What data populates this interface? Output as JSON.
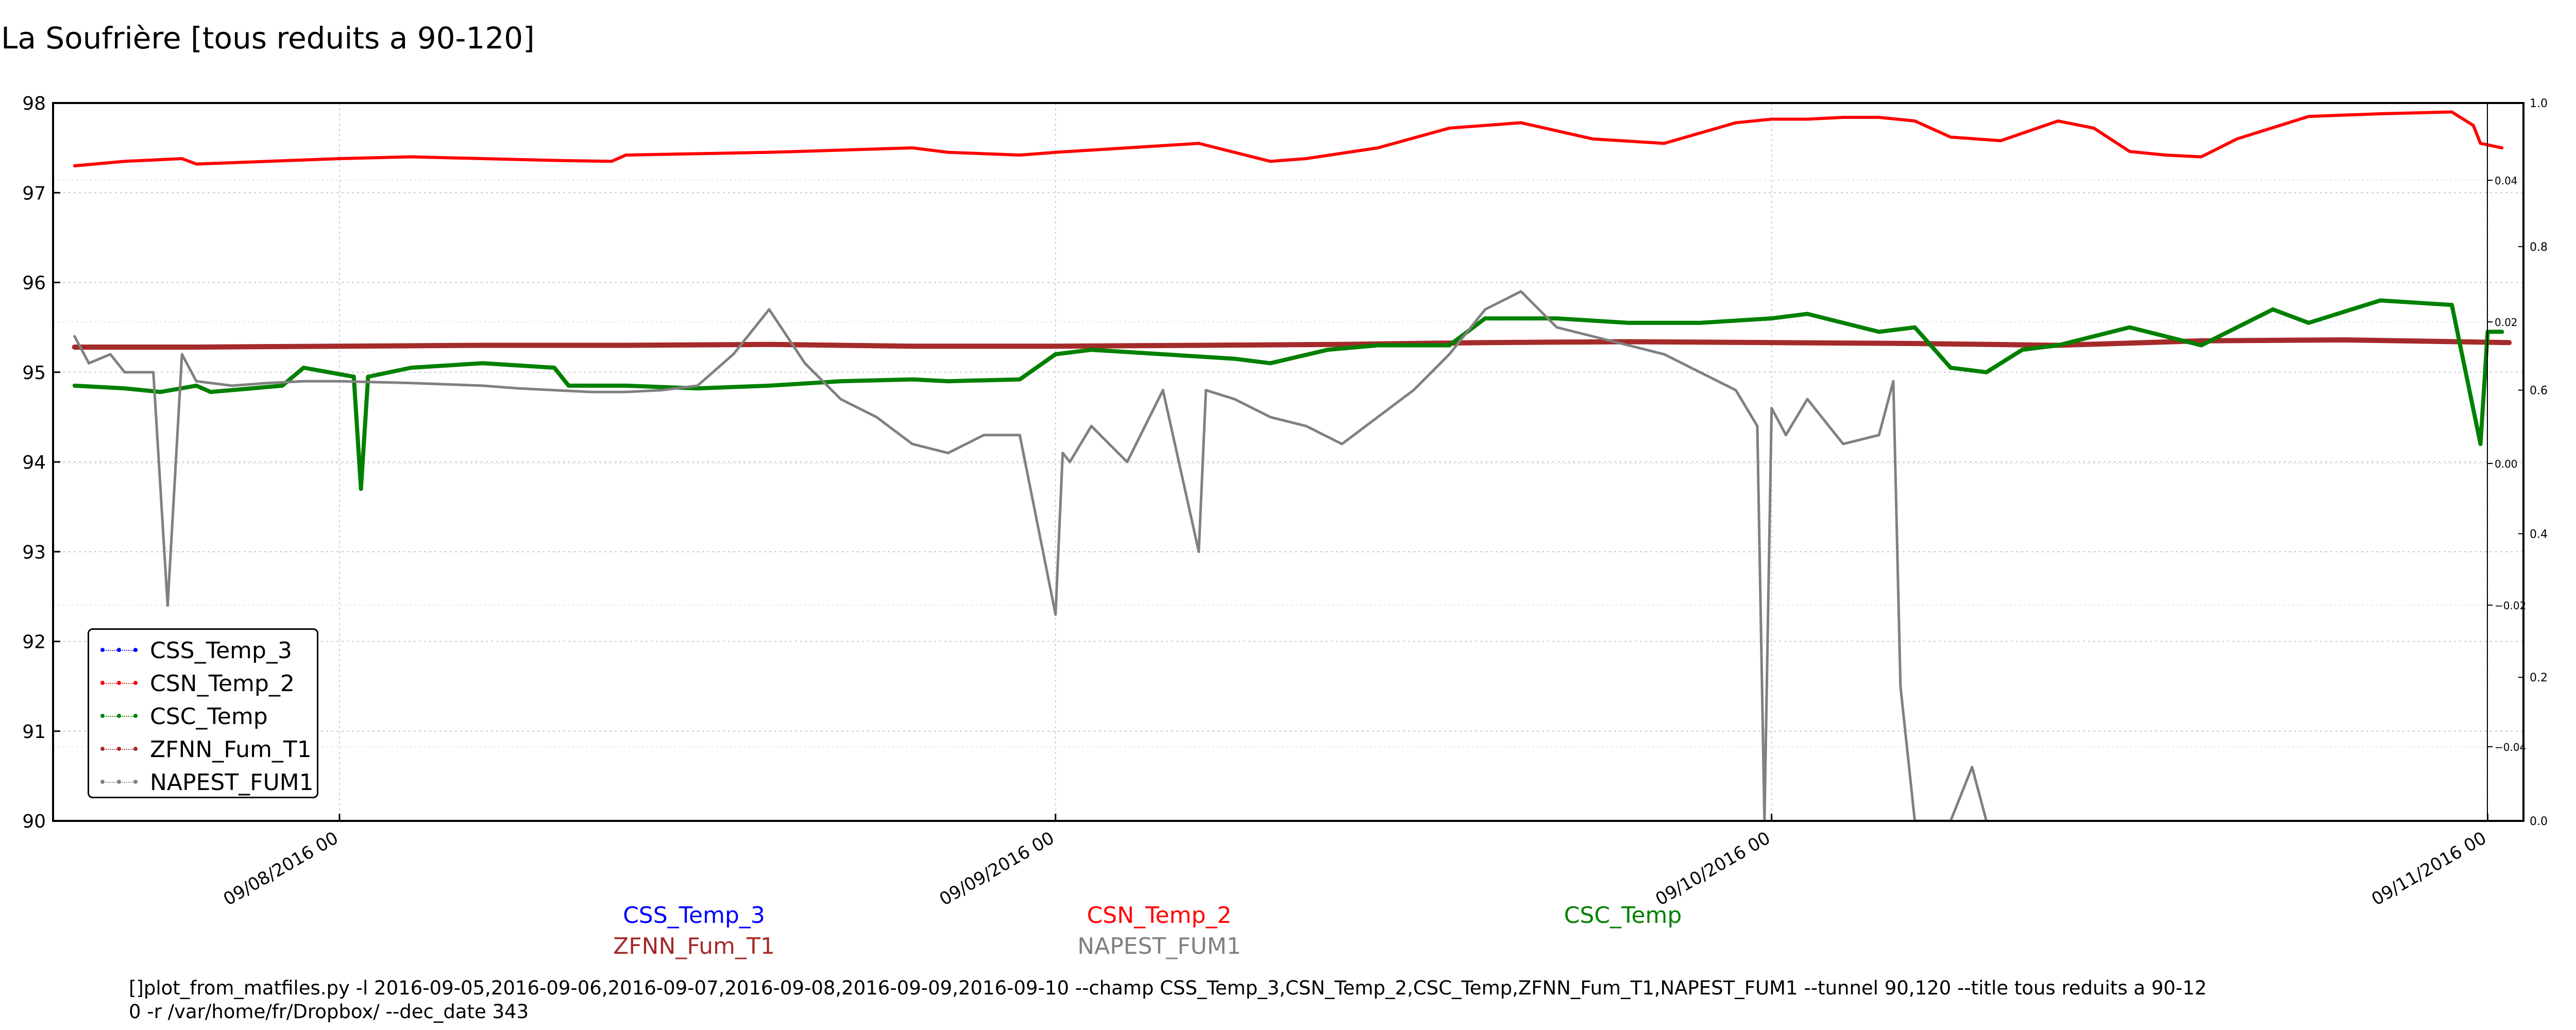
{
  "page": {
    "title": "La Soufrière [tous reduits a 90-120]",
    "command_line": "[]plot_from_matfiles.py -l 2016-09-05,2016-09-06,2016-09-07,2016-09-08,2016-09-09,2016-09-10 --champ CSS_Temp_3,CSN_Temp_2,CSC_Temp,ZFNN_Fum_T1,NAPEST_FUM1 --tunnel 90,120 --title tous reduits a 90-12\n0 -r /var/home/fr/Dropbox/ --dec_date 343"
  },
  "legend": {
    "items": [
      {
        "label": "CSS_Temp_3",
        "color": "#0000ff"
      },
      {
        "label": "CSN_Temp_2",
        "color": "#ff0000"
      },
      {
        "label": "CSC_Temp",
        "color": "#008000"
      },
      {
        "label": "ZFNN_Fum_T1",
        "color": "#a52a2a"
      },
      {
        "label": "NAPEST_FUM1",
        "color": "#808080"
      }
    ]
  },
  "captions": [
    {
      "label": "CSS_Temp_3",
      "color": "#0000ff"
    },
    {
      "label": "CSN_Temp_2",
      "color": "#ff0000"
    },
    {
      "label": "CSC_Temp",
      "color": "#008000"
    },
    {
      "label": "ZFNN_Fum_T1",
      "color": "#a52a2a"
    },
    {
      "label": "NAPEST_FUM1",
      "color": "#808080"
    }
  ],
  "chart_data": {
    "type": "line",
    "title": "La Soufrière [tous reduits a 90-120]",
    "xlabel": "",
    "ylabel": "",
    "x_unit": "date (day of month, September–November 2016 ticks)",
    "xlim": [
      7.6,
      11.05
    ],
    "ylim": [
      90,
      98
    ],
    "xticks": [
      {
        "value": 8,
        "label": "09/08/2016 00"
      },
      {
        "value": 9,
        "label": "09/09/2016 00"
      },
      {
        "value": 10,
        "label": "09/10/2016 00"
      },
      {
        "value": 11,
        "label": "09/11/2016 00"
      }
    ],
    "yticks": [
      90,
      91,
      92,
      93,
      94,
      95,
      96,
      97,
      98
    ],
    "right_ticks_outer": [
      "1.0",
      "0.8",
      "0.6",
      "0.4",
      "0.2",
      "0.0"
    ],
    "right_ticks_inner": [
      "0.04",
      "0.02",
      "0.00",
      "−0.02",
      "−0.04"
    ],
    "grid": true,
    "legend_position": "lower-left",
    "series": [
      {
        "name": "CSN_Temp_2",
        "color": "#ff0000",
        "width": 6,
        "x": [
          7.63,
          7.7,
          7.78,
          7.8,
          7.9,
          8.0,
          8.1,
          8.2,
          8.3,
          8.38,
          8.4,
          8.6,
          8.8,
          8.85,
          8.95,
          9.0,
          9.1,
          9.2,
          9.3,
          9.35,
          9.45,
          9.55,
          9.65,
          9.75,
          9.85,
          9.95,
          10.0,
          10.05,
          10.1,
          10.15,
          10.2,
          10.25,
          10.32,
          10.4,
          10.45,
          10.5,
          10.55,
          10.6,
          10.65,
          10.75,
          10.85,
          10.95,
          10.98,
          10.99,
          11.02
        ],
        "y": [
          97.3,
          97.35,
          97.38,
          97.32,
          97.35,
          97.38,
          97.4,
          97.38,
          97.36,
          97.35,
          97.42,
          97.45,
          97.5,
          97.45,
          97.42,
          97.45,
          97.5,
          97.55,
          97.35,
          97.38,
          97.5,
          97.72,
          97.78,
          97.6,
          97.55,
          97.78,
          97.82,
          97.82,
          97.84,
          97.84,
          97.8,
          97.62,
          97.58,
          97.8,
          97.72,
          97.46,
          97.42,
          97.4,
          97.6,
          97.85,
          97.88,
          97.9,
          97.75,
          97.55,
          97.5
        ]
      },
      {
        "name": "ZFNN_Fum_T1",
        "color": "#a52a2a",
        "width": 10,
        "x": [
          7.63,
          7.8,
          8.0,
          8.2,
          8.4,
          8.6,
          8.8,
          9.0,
          9.2,
          9.4,
          9.6,
          9.8,
          10.0,
          10.2,
          10.4,
          10.6,
          10.8,
          11.03
        ],
        "y": [
          95.28,
          95.28,
          95.29,
          95.3,
          95.3,
          95.31,
          95.29,
          95.29,
          95.3,
          95.31,
          95.33,
          95.34,
          95.33,
          95.32,
          95.3,
          95.35,
          95.36,
          95.33
        ]
      },
      {
        "name": "CSC_Temp",
        "color": "#008000",
        "width": 8,
        "x": [
          7.63,
          7.7,
          7.75,
          7.8,
          7.82,
          7.92,
          7.95,
          8.02,
          8.03,
          8.04,
          8.1,
          8.2,
          8.3,
          8.32,
          8.4,
          8.5,
          8.6,
          8.7,
          8.8,
          8.85,
          8.95,
          9.0,
          9.05,
          9.15,
          9.25,
          9.3,
          9.38,
          9.45,
          9.55,
          9.6,
          9.7,
          9.8,
          9.9,
          10.0,
          10.05,
          10.1,
          10.15,
          10.2,
          10.25,
          10.3,
          10.35,
          10.4,
          10.45,
          10.5,
          10.6,
          10.7,
          10.75,
          10.85,
          10.95,
          10.99,
          11.0,
          11.02
        ],
        "y": [
          94.85,
          94.82,
          94.78,
          94.85,
          94.78,
          94.85,
          95.05,
          94.95,
          93.7,
          94.95,
          95.05,
          95.1,
          95.05,
          94.85,
          94.85,
          94.82,
          94.85,
          94.9,
          94.92,
          94.9,
          94.92,
          95.2,
          95.25,
          95.2,
          95.15,
          95.1,
          95.25,
          95.3,
          95.3,
          95.6,
          95.6,
          95.55,
          95.55,
          95.6,
          95.65,
          95.55,
          95.45,
          95.5,
          95.05,
          95.0,
          95.25,
          95.3,
          95.4,
          95.5,
          95.3,
          95.7,
          95.55,
          95.8,
          95.75,
          94.2,
          95.45,
          95.45
        ]
      },
      {
        "name": "NAPEST_FUM1",
        "color": "#808080",
        "width": 5,
        "x": [
          7.63,
          7.65,
          7.68,
          7.7,
          7.74,
          7.76,
          7.78,
          7.8,
          7.85,
          7.9,
          7.95,
          8.0,
          8.1,
          8.2,
          8.25,
          8.3,
          8.35,
          8.4,
          8.45,
          8.5,
          8.55,
          8.6,
          8.65,
          8.7,
          8.75,
          8.8,
          8.85,
          8.9,
          8.95,
          9.0,
          9.01,
          9.02,
          9.05,
          9.1,
          9.15,
          9.2,
          9.21,
          9.25,
          9.3,
          9.35,
          9.4,
          9.45,
          9.5,
          9.55,
          9.6,
          9.65,
          9.7,
          9.75,
          9.8,
          9.85,
          9.9,
          9.95,
          9.98,
          9.99,
          10.0,
          10.02,
          10.05,
          10.1,
          10.15,
          10.16,
          10.17,
          10.18,
          10.2,
          10.25,
          10.28,
          10.3
        ],
        "y": [
          95.4,
          95.1,
          95.2,
          95.0,
          95.0,
          92.4,
          95.2,
          94.9,
          94.85,
          94.88,
          94.9,
          94.9,
          94.88,
          94.85,
          94.82,
          94.8,
          94.78,
          94.78,
          94.8,
          94.85,
          95.2,
          95.7,
          95.1,
          94.7,
          94.5,
          94.2,
          94.1,
          94.3,
          94.3,
          92.3,
          94.1,
          94.0,
          94.4,
          94.0,
          94.8,
          93.0,
          94.8,
          94.7,
          94.5,
          94.4,
          94.2,
          94.5,
          94.8,
          95.2,
          95.7,
          95.9,
          95.5,
          95.4,
          95.3,
          95.2,
          95.0,
          94.8,
          94.4,
          90.0,
          94.6,
          94.3,
          94.7,
          94.2,
          94.3,
          94.6,
          94.9,
          91.5,
          90.0,
          90.0,
          90.6,
          90.0
        ]
      },
      {
        "name": "CSS_Temp_3",
        "color": "#0000ff",
        "width": 2,
        "x": [],
        "y": []
      }
    ]
  }
}
